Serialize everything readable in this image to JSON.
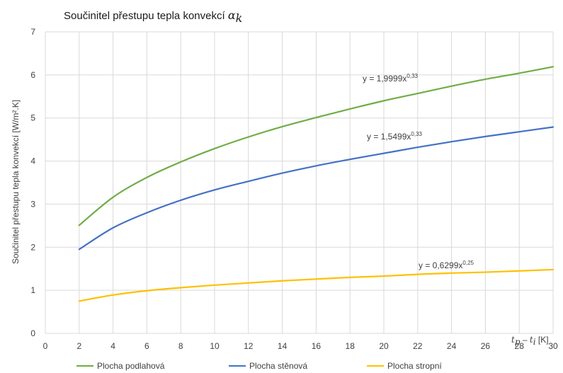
{
  "chart_data": {
    "type": "line",
    "title": "Součinitel přestupu tepla konvekcí",
    "title_symbol": "α",
    "title_symbol_sub": "k",
    "ylabel": "Součinitel přestupu tepla konvekcí [W/m².K]",
    "xlabel_parts": {
      "a": "t",
      "a_sub": "p",
      "dash": " – ",
      "b": "t",
      "b_sub": "i",
      "unit": "  [K]"
    },
    "xlim": [
      0,
      30
    ],
    "ylim": [
      0,
      7
    ],
    "x_ticks": [
      0,
      2,
      4,
      6,
      8,
      10,
      12,
      14,
      16,
      18,
      20,
      22,
      24,
      26,
      28,
      30
    ],
    "y_ticks": [
      0,
      1,
      2,
      3,
      4,
      5,
      6,
      7
    ],
    "grid": "both",
    "legend_position": "bottom",
    "x": [
      2,
      4,
      6,
      8,
      10,
      12,
      14,
      16,
      18,
      20,
      22,
      24,
      26,
      28,
      30
    ],
    "series": [
      {
        "name": "Plocha podlahová",
        "color": "#70ad47",
        "values": [
          2.51,
          3.16,
          3.62,
          3.98,
          4.29,
          4.56,
          4.8,
          5.01,
          5.21,
          5.4,
          5.57,
          5.74,
          5.9,
          6.04,
          6.19
        ],
        "equation": {
          "base": "y = 1,9999x",
          "exp": "0,33"
        }
      },
      {
        "name": "Plocha stěnová",
        "color": "#4472c4",
        "values": [
          1.95,
          2.45,
          2.8,
          3.09,
          3.33,
          3.53,
          3.72,
          3.89,
          4.04,
          4.18,
          4.32,
          4.45,
          4.57,
          4.68,
          4.79
        ],
        "equation": {
          "base": "y = 1,5499x",
          "exp": "0,33"
        }
      },
      {
        "name": "Plocha stropní",
        "color": "#ffc000",
        "values": [
          0.75,
          0.89,
          0.99,
          1.06,
          1.12,
          1.17,
          1.22,
          1.26,
          1.3,
          1.33,
          1.37,
          1.4,
          1.42,
          1.45,
          1.48
        ],
        "equation": {
          "base": "y = 0,6299x",
          "exp": "0,25"
        }
      }
    ]
  }
}
